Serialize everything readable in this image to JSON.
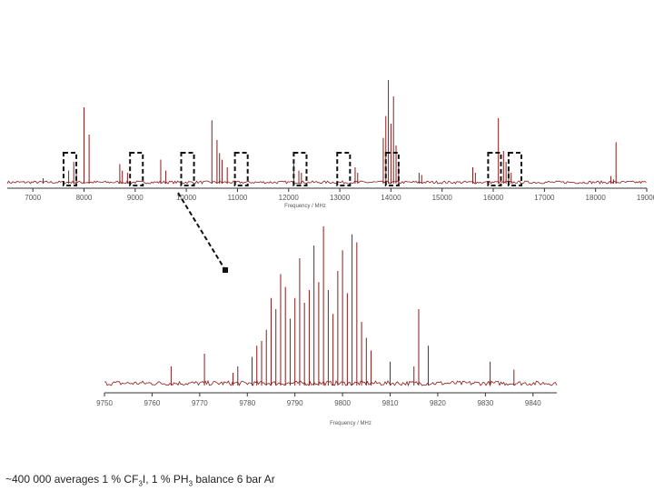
{
  "caption": {
    "prefix": "~400 000 averages 1 % CF",
    "sub1": "3",
    "mid": "I, 1 % PH",
    "sub2": "3",
    "suffix": " balance 6 bar Ar"
  },
  "colors": {
    "spectrum": "#8b1a1a",
    "axis": "#333333",
    "box": "#111111"
  },
  "chart_data": [
    {
      "type": "line",
      "xlabel": "Frequency / MHz",
      "ylabel": "",
      "xlim": [
        6500,
        19000
      ],
      "ylim": [
        0,
        1
      ],
      "grid": false,
      "xticks": [
        "7000",
        "8000",
        "9000",
        "10000",
        "11000",
        "12000",
        "13000",
        "14000",
        "15000",
        "16000",
        "17000",
        "18000",
        "19000"
      ],
      "series": [
        {
          "x": [
            7200,
            7700,
            7800,
            7850,
            8000,
            8100,
            8700,
            8750,
            8850,
            9500,
            9600,
            10500,
            10600,
            10650,
            10700,
            10800,
            12100,
            12200,
            12250,
            13300,
            13350,
            13850,
            13900,
            13950,
            14000,
            14050,
            14100,
            14150,
            14550,
            14600,
            15600,
            15650,
            16100,
            16200,
            16250,
            16300,
            16350,
            18300,
            18350,
            18400
          ],
          "y": [
            0.05,
            0.12,
            0.2,
            0.1,
            0.7,
            0.45,
            0.18,
            0.12,
            0.1,
            0.22,
            0.12,
            0.58,
            0.4,
            0.28,
            0.22,
            0.15,
            0.18,
            0.12,
            0.1,
            0.15,
            0.1,
            0.42,
            0.62,
            0.95,
            0.55,
            0.8,
            0.35,
            0.2,
            0.1,
            0.08,
            0.15,
            0.1,
            0.6,
            0.3,
            0.2,
            0.15,
            0.1,
            0.07,
            0.04,
            0.38
          ]
        }
      ],
      "zoom_regions": [
        [
          7600,
          7850
        ],
        [
          8900,
          9150
        ],
        [
          9900,
          10150
        ],
        [
          10950,
          11200
        ],
        [
          12100,
          12350
        ],
        [
          12950,
          13200
        ],
        [
          13900,
          14150
        ],
        [
          15900,
          16150
        ],
        [
          16300,
          16550
        ]
      ]
    },
    {
      "type": "line",
      "xlabel": "Frequency / MHz",
      "ylabel": "",
      "xlim": [
        9750,
        9845
      ],
      "ylim": [
        0,
        1
      ],
      "grid": false,
      "xticks": [
        "9750",
        "9760",
        "9770",
        "9780",
        "9790",
        "9800",
        "9810",
        "9820",
        "9830",
        "9840"
      ],
      "series": [
        {
          "x": [
            9764,
            9771,
            9777,
            9778,
            9781,
            9782,
            9783,
            9784,
            9785,
            9786,
            9787,
            9788,
            9789,
            9790,
            9791,
            9792,
            9793,
            9794,
            9795,
            9796,
            9797,
            9798,
            9799,
            9800,
            9801,
            9802,
            9803,
            9804,
            9805,
            9806,
            9810,
            9815,
            9816,
            9818,
            9831,
            9836
          ],
          "y": [
            0.12,
            0.2,
            0.08,
            0.12,
            0.18,
            0.25,
            0.28,
            0.35,
            0.55,
            0.48,
            0.7,
            0.62,
            0.42,
            0.55,
            0.8,
            0.52,
            0.6,
            0.88,
            0.65,
            1.0,
            0.6,
            0.45,
            0.72,
            0.85,
            0.58,
            0.95,
            0.9,
            0.4,
            0.3,
            0.22,
            0.15,
            0.12,
            0.48,
            0.25,
            0.15,
            0.1
          ]
        }
      ]
    }
  ]
}
